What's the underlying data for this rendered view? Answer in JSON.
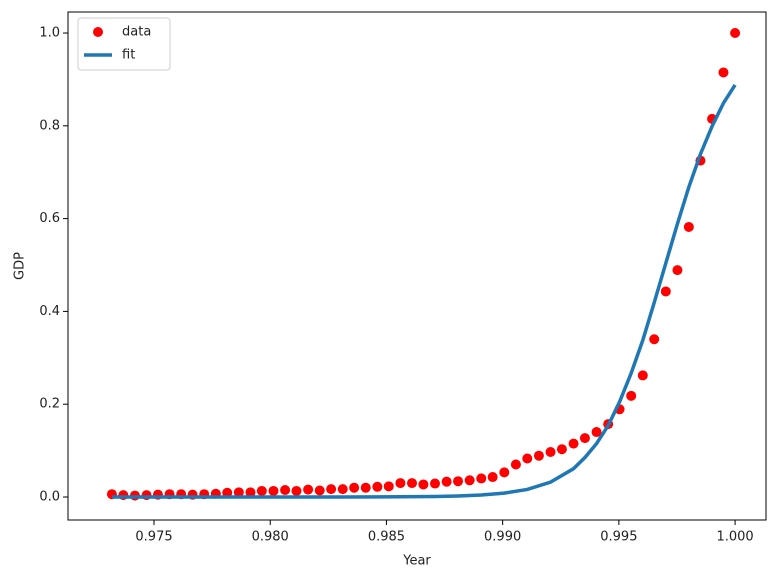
{
  "chart_data": {
    "type": "scatter",
    "xlabel": "Year",
    "ylabel": "GDP",
    "xlim": [
      0.9713,
      1.00133
    ],
    "ylim": [
      -0.0496,
      1.0453
    ],
    "xticks": [
      0.975,
      {
        "value": 0.98,
        "label": "0.980"
      },
      0.985,
      {
        "value": 0.99,
        "label": "0.990"
      },
      0.995,
      {
        "value": 1.0,
        "label": "1.000"
      }
    ],
    "yticks": [
      {
        "value": 0,
        "label": "0.0"
      },
      0.2,
      0.4,
      0.6,
      0.8,
      {
        "value": 1.0,
        "label": "1.0"
      }
    ],
    "legend": "upper left",
    "series": [
      {
        "name": "data",
        "type": "scatter",
        "color": "#ff0000",
        "x": [
          0.97319,
          0.97368,
          0.97418,
          0.97468,
          0.97517,
          0.97567,
          0.97617,
          0.97666,
          0.97716,
          0.97766,
          0.97815,
          0.97865,
          0.97915,
          0.97964,
          0.98014,
          0.98064,
          0.98113,
          0.98163,
          0.98213,
          0.98262,
          0.98312,
          0.98361,
          0.98411,
          0.98461,
          0.9851,
          0.9856,
          0.9861,
          0.98659,
          0.98709,
          0.98759,
          0.98808,
          0.98858,
          0.98908,
          0.98957,
          0.99007,
          0.99057,
          0.99106,
          0.99156,
          0.99206,
          0.99255,
          0.99305,
          0.99354,
          0.99404,
          0.99454,
          0.99503,
          0.99553,
          0.99603,
          0.99652,
          0.99702,
          0.99752,
          0.99801,
          0.99851,
          0.99901,
          0.9995,
          1.0
        ],
        "values": [
          0.006,
          0.004,
          0.003,
          0.004,
          0.005,
          0.006,
          0.006,
          0.005,
          0.006,
          0.007,
          0.009,
          0.01,
          0.01,
          0.013,
          0.013,
          0.015,
          0.013,
          0.016,
          0.014,
          0.017,
          0.017,
          0.02,
          0.02,
          0.022,
          0.023,
          0.03,
          0.03,
          0.027,
          0.029,
          0.033,
          0.034,
          0.036,
          0.04,
          0.043,
          0.053,
          0.07,
          0.083,
          0.089,
          0.097,
          0.103,
          0.115,
          0.127,
          0.14,
          0.157,
          0.189,
          0.218,
          0.262,
          0.34,
          0.443,
          0.489,
          0.582,
          0.725,
          0.815,
          0.915,
          1.0
        ]
      },
      {
        "name": "fit",
        "type": "line",
        "color": "#1f77b4",
        "x": [
          0.97319,
          0.97815,
          0.98312,
          0.9856,
          0.98709,
          0.98808,
          0.98908,
          0.99007,
          0.99106,
          0.99206,
          0.99305,
          0.99354,
          0.99404,
          0.99454,
          0.99503,
          0.99553,
          0.99603,
          0.99652,
          0.99702,
          0.99752,
          0.99801,
          0.99851,
          0.99901,
          0.9995,
          1.0
        ],
        "values": [
          0,
          0,
          0.0001,
          0.0004,
          0.0011,
          0.0021,
          0.0042,
          0.0083,
          0.0163,
          0.032,
          0.061,
          0.085,
          0.115,
          0.154,
          0.205,
          0.267,
          0.338,
          0.419,
          0.504,
          0.589,
          0.668,
          0.739,
          0.799,
          0.849,
          0.888
        ]
      }
    ]
  }
}
